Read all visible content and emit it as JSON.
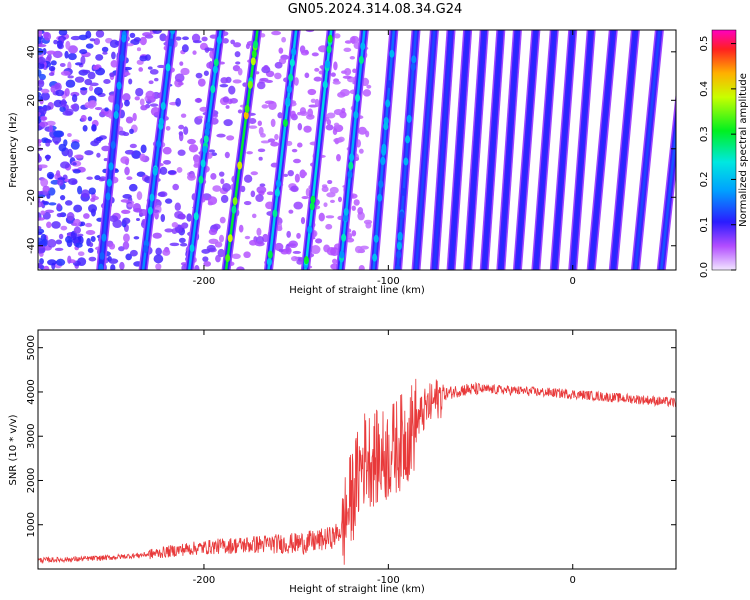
{
  "title": "GN05.2024.314.08.34.G24",
  "chart_data": [
    {
      "type": "heatmap",
      "xlabel": "Height of straight line (km)",
      "ylabel": "Frequency (Hz)",
      "xlim": [
        -290,
        56
      ],
      "ylim": [
        -50,
        49
      ],
      "xticks": [
        -200,
        -100,
        0
      ],
      "xtick_labels": [
        "-200",
        "-100",
        "0"
      ],
      "yticks": [
        -40,
        -20,
        0,
        20,
        40
      ],
      "ytick_labels": [
        "-40",
        "-20",
        "0",
        "20",
        "40"
      ],
      "colorbar": {
        "label": "Normalized spectral amplitude",
        "range": [
          0,
          0.53
        ],
        "ticks": [
          0,
          0.1,
          0.2,
          0.3,
          0.4,
          0.5
        ],
        "tick_labels": [
          "0.0",
          "0.1",
          "0.2",
          "0.3",
          "0.4",
          "0.5"
        ],
        "colormap": "rainbow"
      },
      "stripes": [
        {
          "x_bottom": -256,
          "x_top": -243,
          "amp": 0.18
        },
        {
          "x_bottom": -233,
          "x_top": -217,
          "amp": 0.22
        },
        {
          "x_bottom": -208,
          "x_top": -191,
          "amp": 0.25
        },
        {
          "x_bottom": -188,
          "x_top": -171,
          "amp": 0.4
        },
        {
          "x_bottom": -165,
          "x_top": -150,
          "amp": 0.28
        },
        {
          "x_bottom": -145,
          "x_top": -131,
          "amp": 0.3
        },
        {
          "x_bottom": -126,
          "x_top": -113,
          "amp": 0.25
        },
        {
          "x_bottom": -108,
          "x_top": -97,
          "amp": 0.2
        },
        {
          "x_bottom": -95,
          "x_top": -85,
          "amp": 0.18
        },
        {
          "x_bottom": -85,
          "x_top": -75,
          "amp": 0.17
        },
        {
          "x_bottom": -75,
          "x_top": -66,
          "amp": 0.16
        },
        {
          "x_bottom": -66,
          "x_top": -57,
          "amp": 0.15
        },
        {
          "x_bottom": -57,
          "x_top": -48,
          "amp": 0.15
        },
        {
          "x_bottom": -48,
          "x_top": -39,
          "amp": 0.15
        },
        {
          "x_bottom": -39,
          "x_top": -30,
          "amp": 0.15
        },
        {
          "x_bottom": -30,
          "x_top": -20,
          "amp": 0.15
        },
        {
          "x_bottom": -20,
          "x_top": -10,
          "amp": 0.15
        },
        {
          "x_bottom": -10,
          "x_top": 0,
          "amp": 0.15
        },
        {
          "x_bottom": 0,
          "x_top": 10,
          "amp": 0.15
        },
        {
          "x_bottom": 10,
          "x_top": 22,
          "amp": 0.15
        },
        {
          "x_bottom": 22,
          "x_top": 34,
          "amp": 0.15
        },
        {
          "x_bottom": 34,
          "x_top": 47,
          "amp": 0.17
        },
        {
          "x_bottom": 48,
          "x_top": 62,
          "amp": 0.18
        }
      ]
    },
    {
      "type": "line",
      "xlabel": "Height of straight line (km)",
      "ylabel": "SNR (10 * v/v)",
      "xlim": [
        -290,
        56
      ],
      "ylim": [
        0,
        5400
      ],
      "xticks": [
        -200,
        -100,
        0
      ],
      "xtick_labels": [
        "-200",
        "-100",
        "0"
      ],
      "yticks": [
        1000,
        2000,
        3000,
        4000,
        5000
      ],
      "ytick_labels": [
        "1000",
        "2000",
        "3000",
        "4000",
        "5000"
      ],
      "color": "#e8393a",
      "series": [
        {
          "x": [
            -290,
            -270,
            -250,
            -230,
            -210,
            -190,
            -170,
            -150,
            -140,
            -130,
            -125,
            -120,
            -115,
            -112,
            -110,
            -105,
            -100,
            -95,
            -90,
            -85,
            -80,
            -75,
            -70,
            -65,
            -60,
            -50,
            -40,
            -30,
            -20,
            -10,
            0,
            10,
            20,
            30,
            40,
            50,
            56
          ],
          "y": [
            200,
            220,
            260,
            330,
            450,
            520,
            560,
            580,
            620,
            720,
            900,
            1600,
            2300,
            2600,
            2500,
            2500,
            2600,
            2800,
            3000,
            3300,
            3600,
            3800,
            3950,
            4000,
            4050,
            4060,
            4050,
            4030,
            4000,
            3980,
            3950,
            3920,
            3880,
            3850,
            3820,
            3780,
            3760
          ]
        }
      ]
    }
  ]
}
